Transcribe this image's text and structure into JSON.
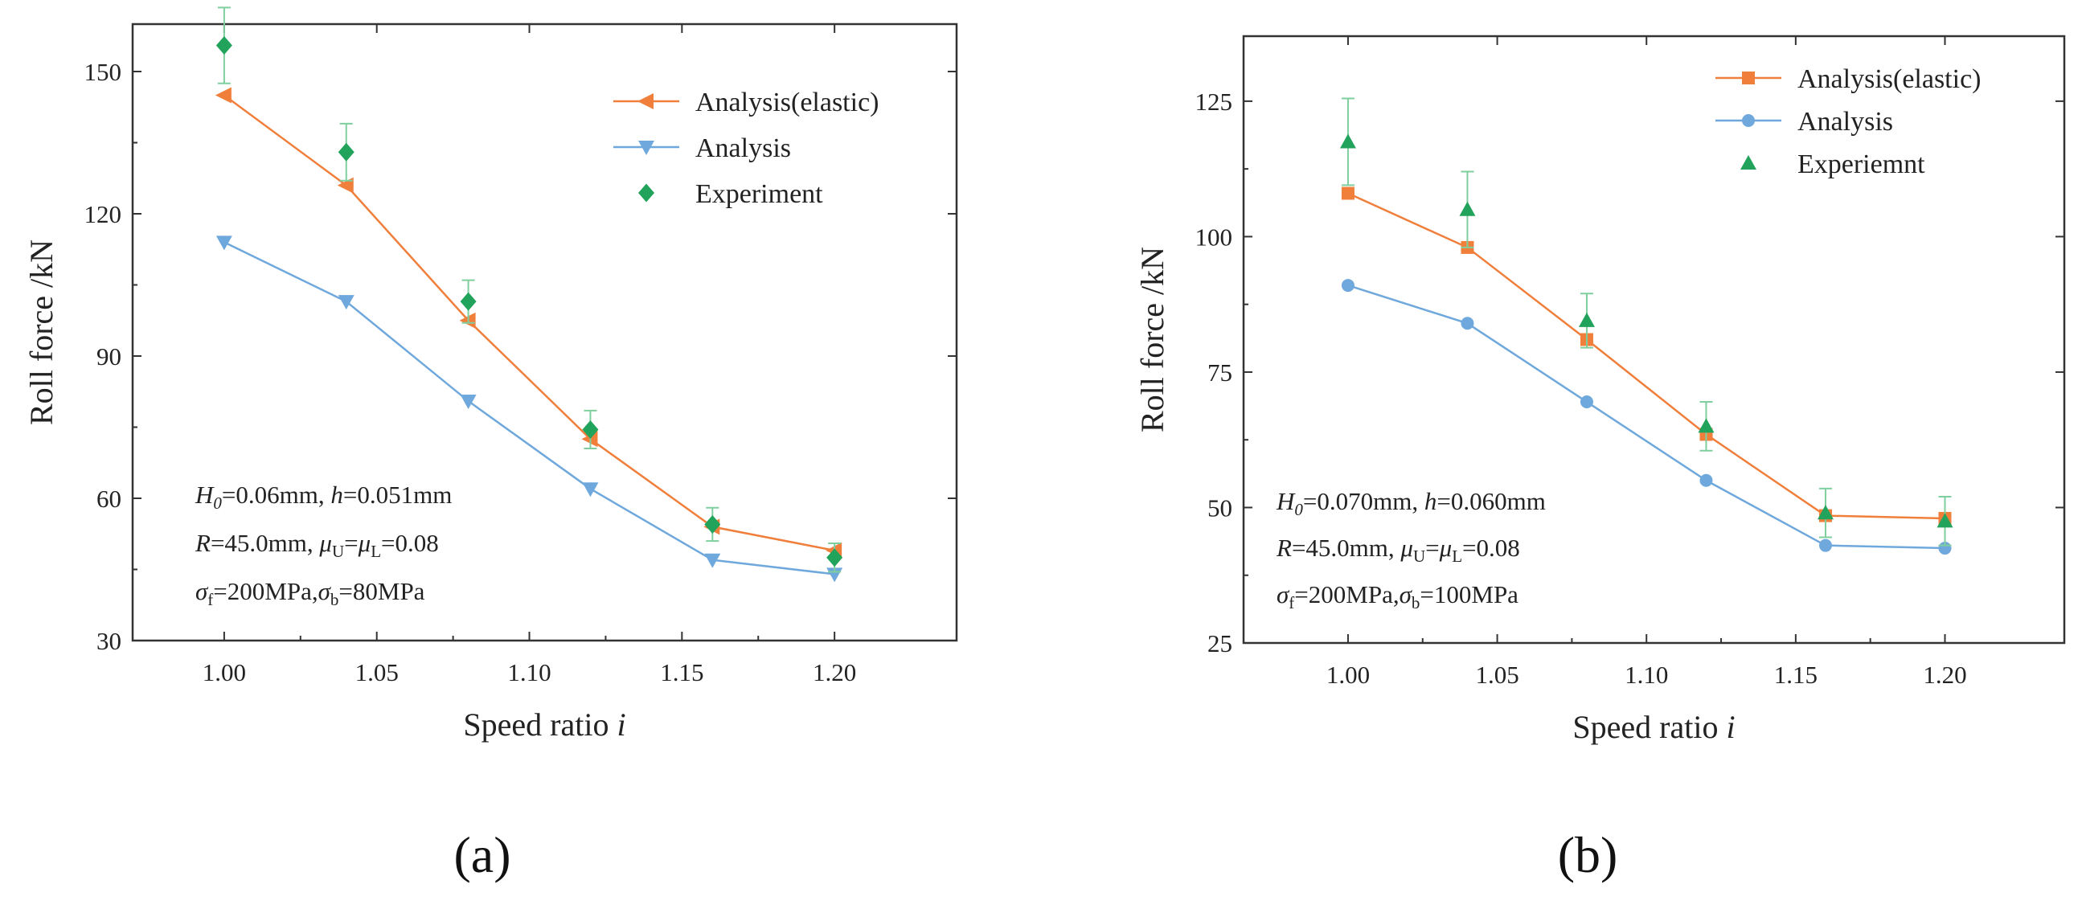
{
  "chart_data": [
    {
      "type": "line",
      "panel_label": "(a)",
      "xlabel": "Speed ratio",
      "xlabel_var": "i",
      "ylabel": "Roll force /kN",
      "xlim": [
        0.97,
        1.24
      ],
      "ylim": [
        30,
        160
      ],
      "xticks": [
        1.0,
        1.05,
        1.1,
        1.15,
        1.2
      ],
      "xtick_labels": [
        "1.00",
        "1.05",
        "1.10",
        "1.15",
        "1.20"
      ],
      "yticks": [
        30,
        60,
        90,
        120,
        150
      ],
      "ytick_labels": [
        "30",
        "60",
        "90",
        "120",
        "150"
      ],
      "x": [
        1.0,
        1.04,
        1.08,
        1.12,
        1.16,
        1.2
      ],
      "series": [
        {
          "name": "Analysis(elastic)",
          "color": "#f07f3c",
          "marker": "triangle-left",
          "line": true,
          "values": [
            145,
            126,
            97.5,
            72.5,
            54,
            49
          ]
        },
        {
          "name": "Analysis",
          "color": "#6fa8dc",
          "marker": "triangle-down",
          "line": true,
          "values": [
            114,
            101.5,
            80.5,
            62,
            47,
            44
          ]
        },
        {
          "name": "Experiment",
          "color": "#22a35b",
          "marker": "diamond",
          "line": false,
          "values": [
            155.5,
            133,
            101.5,
            74.5,
            54.5,
            47.5
          ],
          "error": [
            8,
            6,
            4.5,
            4,
            3.5,
            3
          ]
        }
      ],
      "legend": [
        "Analysis(elastic)",
        "Analysis",
        "Experiment"
      ],
      "legend_position": "top-right",
      "annotations": [
        [
          {
            "t": "H",
            "s": "i"
          },
          {
            "t": "0",
            "s": "isub"
          },
          {
            "t": "=0.06mm, ",
            "s": "n"
          },
          {
            "t": "h",
            "s": "i"
          },
          {
            "t": "=0.051mm",
            "s": "n"
          }
        ],
        [
          {
            "t": "R",
            "s": "i"
          },
          {
            "t": "=45.0mm, ",
            "s": "n"
          },
          {
            "t": "μ",
            "s": "i"
          },
          {
            "t": "U",
            "s": "sub"
          },
          {
            "t": "=",
            "s": "n"
          },
          {
            "t": "μ",
            "s": "i"
          },
          {
            "t": "L",
            "s": "sub"
          },
          {
            "t": "=0.08",
            "s": "n"
          }
        ],
        [
          {
            "t": "σ",
            "s": "i"
          },
          {
            "t": "f",
            "s": "sub"
          },
          {
            "t": "=200MPa,",
            "s": "n"
          },
          {
            "t": "σ",
            "s": "i"
          },
          {
            "t": "b",
            "s": "sub"
          },
          {
            "t": "=80MPa",
            "s": "n"
          }
        ]
      ]
    },
    {
      "type": "line",
      "panel_label": "(b)",
      "xlabel": "Speed ratio",
      "xlabel_var": "i",
      "ylabel": "Roll force /kN",
      "xlim": [
        0.965,
        1.24
      ],
      "ylim": [
        25,
        137
      ],
      "xticks": [
        1.0,
        1.05,
        1.1,
        1.15,
        1.2
      ],
      "xtick_labels": [
        "1.00",
        "1.05",
        "1.10",
        "1.15",
        "1.20"
      ],
      "yticks": [
        25,
        50,
        75,
        100,
        125
      ],
      "ytick_labels": [
        "25",
        "50",
        "75",
        "100",
        "125"
      ],
      "x": [
        1.0,
        1.04,
        1.08,
        1.12,
        1.16,
        1.2
      ],
      "series": [
        {
          "name": "Analysis(elastic)",
          "color": "#f07f3c",
          "marker": "square",
          "line": true,
          "values": [
            108,
            98,
            81,
            63.5,
            48.5,
            48
          ]
        },
        {
          "name": "Analysis",
          "color": "#6fa8dc",
          "marker": "circle",
          "line": true,
          "values": [
            91,
            84,
            69.5,
            55,
            43,
            42.5
          ]
        },
        {
          "name": "Experiemnt",
          "color": "#22a35b",
          "marker": "triangle-up",
          "line": false,
          "values": [
            117.5,
            105,
            84.5,
            65,
            49,
            47.5
          ],
          "error": [
            8,
            7,
            5,
            4.5,
            4.5,
            4.5
          ]
        }
      ],
      "legend": [
        "Analysis(elastic)",
        "Analysis",
        "Experiemnt"
      ],
      "legend_position": "top-right",
      "annotations": [
        [
          {
            "t": "H",
            "s": "i"
          },
          {
            "t": "0",
            "s": "isub"
          },
          {
            "t": "=0.070mm, ",
            "s": "n"
          },
          {
            "t": "h",
            "s": "i"
          },
          {
            "t": "=0.060mm",
            "s": "n"
          }
        ],
        [
          {
            "t": "R",
            "s": "i"
          },
          {
            "t": "=45.0mm, ",
            "s": "n"
          },
          {
            "t": "μ",
            "s": "i"
          },
          {
            "t": "U",
            "s": "sub"
          },
          {
            "t": "=",
            "s": "n"
          },
          {
            "t": "μ",
            "s": "i"
          },
          {
            "t": "L",
            "s": "sub"
          },
          {
            "t": "=0.08",
            "s": "n"
          }
        ],
        [
          {
            "t": "σ",
            "s": "i"
          },
          {
            "t": "f",
            "s": "sub"
          },
          {
            "t": "=200MPa,",
            "s": "n"
          },
          {
            "t": "σ",
            "s": "i"
          },
          {
            "t": "b",
            "s": "sub"
          },
          {
            "t": "=100MPa",
            "s": "n"
          }
        ]
      ]
    }
  ]
}
